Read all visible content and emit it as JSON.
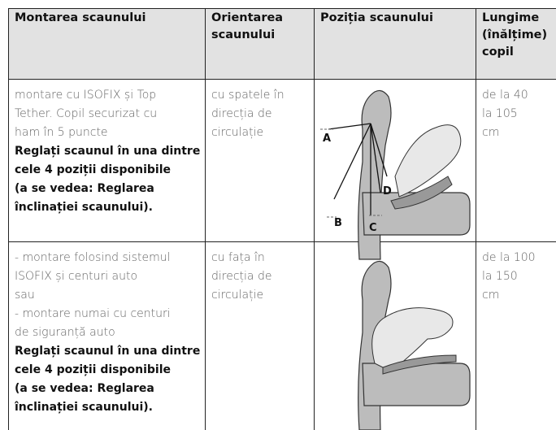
{
  "table": {
    "header": [
      [
        "Montarea scaunului"
      ],
      [
        "Orientarea",
        "scaunului"
      ],
      [
        "Poziția scaunului"
      ],
      [
        "Lungime",
        "(înălțime)",
        "copil"
      ]
    ],
    "rows": [
      {
        "mount": {
          "lines": [
            "montare cu ISOFIX și Top",
            "Tether. Copil securizat cu",
            "ham în 5 puncte"
          ],
          "bold_lines": [
            "Reglați scaunul în una dintre",
            "cele 4 poziții disponibile",
            "(a se vedea: Reglarea",
            "înclinației scaunului)."
          ]
        },
        "orientation": [
          "cu spatele în",
          "direcția de",
          "circulație"
        ],
        "image_labels": [
          "A",
          "B",
          "C",
          "D"
        ],
        "length": [
          "de la 40",
          "la 105",
          "cm"
        ]
      },
      {
        "mount": {
          "lines": [
            "- montare folosind sistemul",
            "ISOFIX și centuri auto",
            "sau",
            "- montare numai cu centuri",
            "de siguranță auto"
          ],
          "bold_lines": [
            "Reglați scaunul în una dintre",
            "cele 4 poziții disponibile",
            "(a se vedea: Reglarea",
            "înclinației scaunului)."
          ]
        },
        "orientation": [
          "cu fața în",
          "direcția de",
          "circulație"
        ],
        "length": [
          "de la 100",
          "la 150",
          "cm"
        ]
      }
    ]
  }
}
